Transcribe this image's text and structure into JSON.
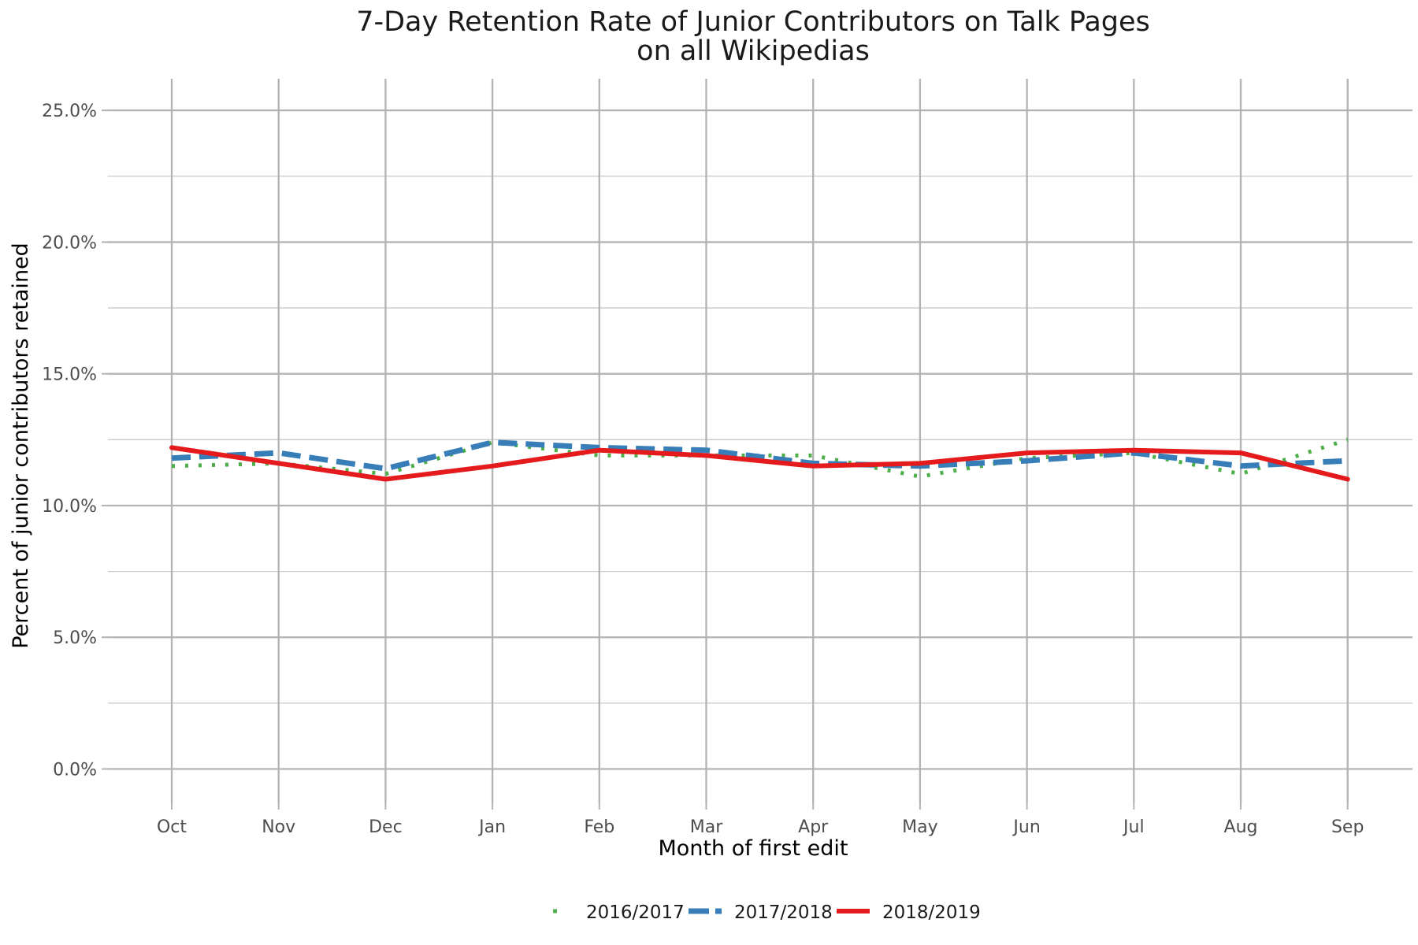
{
  "chart_data": {
    "type": "line",
    "title": "7-Day Retention Rate of Junior Contributors on Talk Pages",
    "subtitle": "on all Wikipedias",
    "xlabel": "Month of first edit",
    "ylabel": "Percent of junior contributors retained",
    "categories": [
      "Oct",
      "Nov",
      "Dec",
      "Jan",
      "Feb",
      "Mar",
      "Apr",
      "May",
      "Jun",
      "Jul",
      "Aug",
      "Sep"
    ],
    "y_ticks": [
      0,
      5,
      10,
      15,
      20,
      25
    ],
    "y_tick_labels": [
      "0.0%",
      "5.0%",
      "10.0%",
      "15.0%",
      "20.0%",
      "25.0%"
    ],
    "ylim": [
      -1.3,
      26.2
    ],
    "y_unit": "percent",
    "grid": true,
    "legend_position": "bottom",
    "series": [
      {
        "name": "2016/2017",
        "color": "#4daf4a",
        "line_style": "dotted",
        "values": [
          11.5,
          11.6,
          11.2,
          12.4,
          11.9,
          11.9,
          11.9,
          11.1,
          11.8,
          12.0,
          11.2,
          12.5
        ]
      },
      {
        "name": "2017/2018",
        "color": "#377eb8",
        "line_style": "dashed",
        "values": [
          11.8,
          12.0,
          11.4,
          12.4,
          12.2,
          12.1,
          11.6,
          11.5,
          11.7,
          12.0,
          11.5,
          11.7
        ]
      },
      {
        "name": "2018/2019",
        "color": "#e41a1c",
        "line_style": "solid",
        "values": [
          12.2,
          11.6,
          11.0,
          11.5,
          12.1,
          11.9,
          11.5,
          11.6,
          12.0,
          12.1,
          12.0,
          11.0
        ]
      }
    ]
  }
}
